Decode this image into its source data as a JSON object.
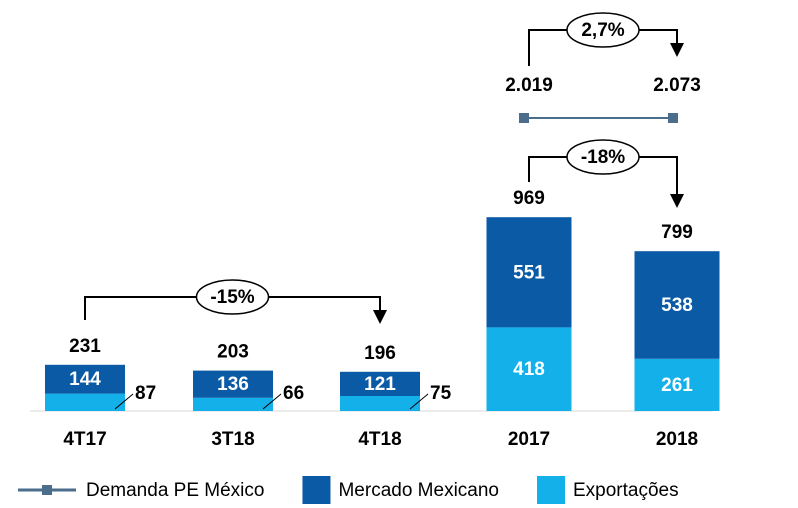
{
  "chart_data": {
    "type": "bar",
    "categories": [
      "4T17",
      "3T18",
      "4T18",
      "2017",
      "2018"
    ],
    "series": [
      {
        "name": "Demanda PE México",
        "type": "line",
        "color": "#4a6e8c",
        "values": [
          null,
          null,
          null,
          2019,
          2073
        ],
        "value_labels": [
          null,
          null,
          null,
          "2.019",
          "2.073"
        ]
      },
      {
        "name": "Mercado Mexicano",
        "color": "#0b5aa6",
        "values": [
          144,
          136,
          121,
          551,
          538
        ]
      },
      {
        "name": "Exportações",
        "color": "#13b0ea",
        "values": [
          87,
          66,
          75,
          418,
          261
        ]
      }
    ],
    "totals": [
      231,
      203,
      196,
      969,
      799
    ],
    "annotations": [
      "-15%",
      "-18%",
      "2,7%"
    ],
    "ylim": [
      0,
      1000
    ],
    "stacked": true,
    "legend": "bottom"
  }
}
